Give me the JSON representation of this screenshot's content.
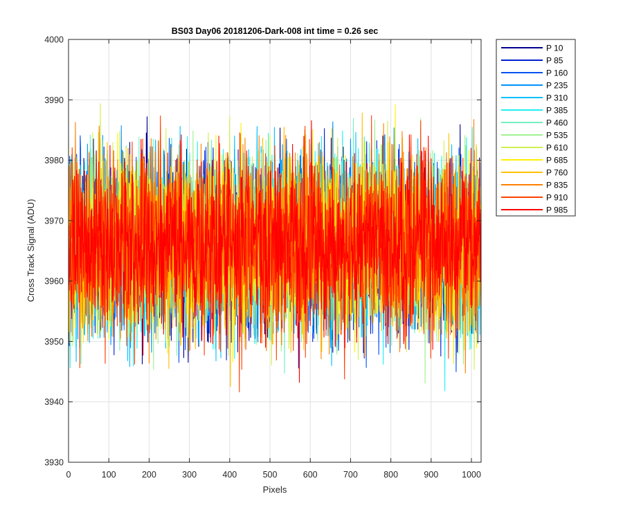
{
  "chart_data": {
    "type": "line",
    "title": "BS03 Day06 20181206-Dark-008 int time = 0.26 sec",
    "xlabel": "Pixels",
    "ylabel": "Cross Track Signal (ADU)",
    "xlim": [
      0,
      1024
    ],
    "ylim": [
      3930,
      4000
    ],
    "xticks": [
      0,
      100,
      200,
      300,
      400,
      500,
      600,
      700,
      800,
      900,
      1000
    ],
    "yticks": [
      3930,
      3940,
      3950,
      3960,
      3970,
      3980,
      3990,
      4000
    ],
    "grid": true,
    "legend_position": "outside-right",
    "noise": {
      "mean": 3966,
      "min": 3935,
      "max": 3998
    },
    "series": [
      {
        "name": "P 10",
        "color": "#00008F"
      },
      {
        "name": "P 85",
        "color": "#0020D0"
      },
      {
        "name": "P 160",
        "color": "#0050F0"
      },
      {
        "name": "P 235",
        "color": "#0090FF"
      },
      {
        "name": "P 310",
        "color": "#00C0FF"
      },
      {
        "name": "P 385",
        "color": "#20F0F0"
      },
      {
        "name": "P 460",
        "color": "#70F0C0"
      },
      {
        "name": "P 535",
        "color": "#A0F090"
      },
      {
        "name": "P 610",
        "color": "#D0F050"
      },
      {
        "name": "P 685",
        "color": "#FFF000"
      },
      {
        "name": "P 760",
        "color": "#FFC000"
      },
      {
        "name": "P 835",
        "color": "#FF8000"
      },
      {
        "name": "P 910",
        "color": "#FF4000"
      },
      {
        "name": "P 985",
        "color": "#FF0000"
      }
    ]
  }
}
